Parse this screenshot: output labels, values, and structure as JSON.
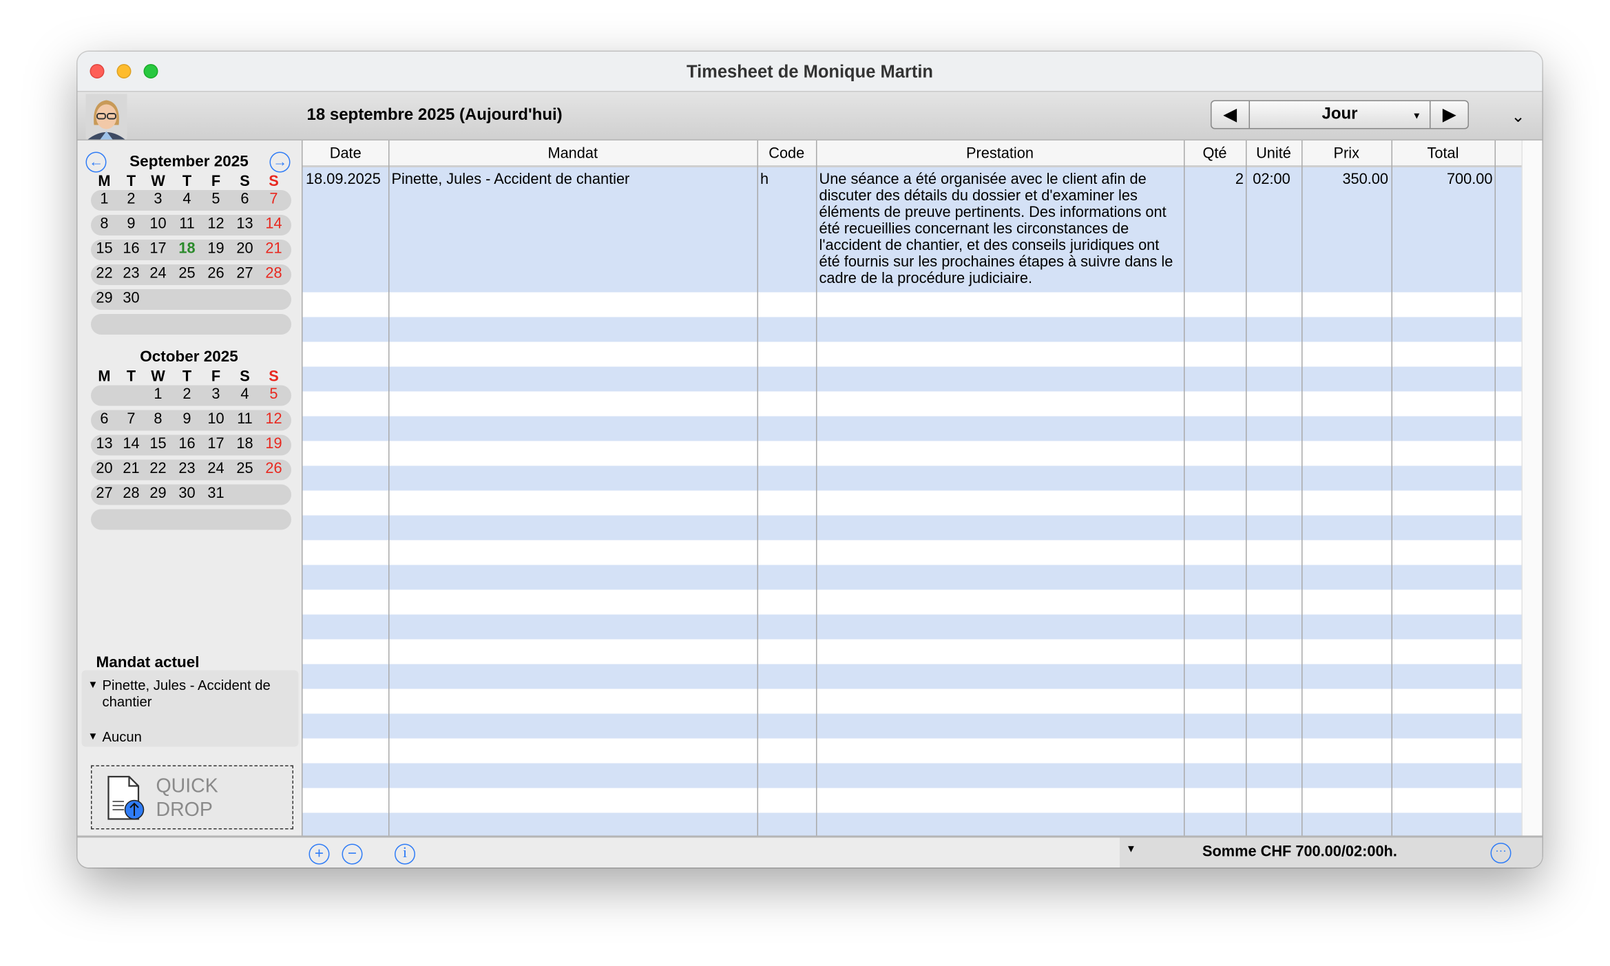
{
  "window": {
    "title": "Timesheet de Monique Martin"
  },
  "toolbar": {
    "date_label": "18 septembre 2025  (Aujourd'hui)",
    "view_select": "Jour",
    "prev_icon": "triangle-left-icon",
    "next_icon": "triangle-right-icon",
    "expand_icon": "chevron-down-icon"
  },
  "calendars": [
    {
      "title": "September 2025",
      "weekdays": [
        "M",
        "T",
        "W",
        "T",
        "F",
        "S",
        "S"
      ],
      "offset": 0,
      "days": 30,
      "today": 18
    },
    {
      "title": "October 2025",
      "weekdays": [
        "M",
        "T",
        "W",
        "T",
        "F",
        "S",
        "S"
      ],
      "offset": 2,
      "days": 31,
      "today": null
    }
  ],
  "mandat": {
    "heading": "Mandat actuel",
    "items": [
      "Pinette, Jules - Accident de chantier",
      "Aucun"
    ]
  },
  "quickdrop": {
    "line1": "QUICK",
    "line2": "DROP"
  },
  "table": {
    "columns": [
      "Date",
      "Mandat",
      "Code",
      "Prestation",
      "Qté",
      "Unité",
      "Prix",
      "Total"
    ],
    "rows": [
      {
        "date": "18.09.2025",
        "mandat": "Pinette, Jules - Accident de chantier",
        "code": "h",
        "prestation": "Une séance a été organisée avec le client afin de discuter des détails du dossier et d'examiner les éléments de preuve pertinents. Des informations ont été recueillies concernant les circonstances de l'accident de chantier, et des conseils juridiques ont été fournis sur les prochaines étapes à suivre dans le cadre de la procédure judiciaire.",
        "qte": "2",
        "unite": "02:00",
        "prix": "350.00",
        "total": "700.00"
      }
    ]
  },
  "footer": {
    "sum": "Somme CHF 700.00/02:00h."
  },
  "colors": {
    "accent": "#2f7cf6",
    "row_stripe": "#d4e1f6",
    "weekend": "#e8281f",
    "today": "#2a8a2a"
  }
}
